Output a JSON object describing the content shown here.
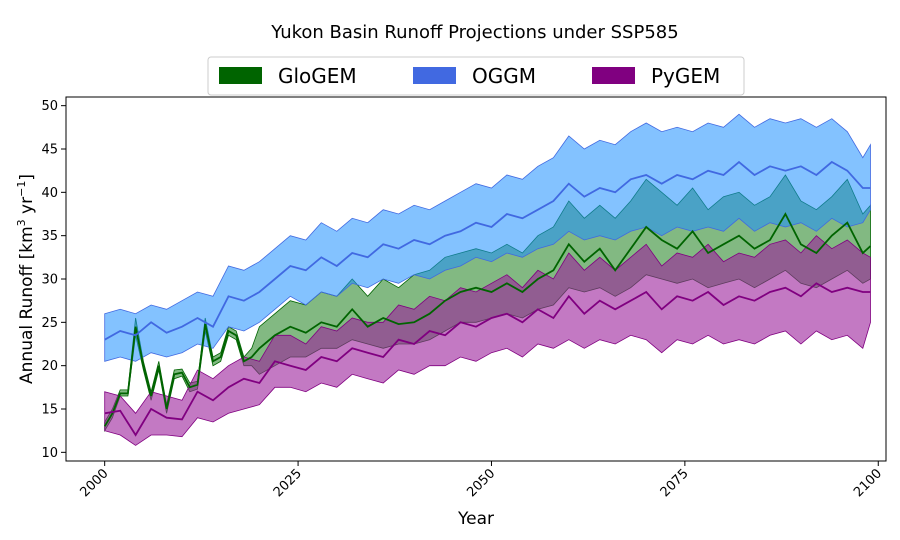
{
  "chart_data": {
    "type": "area",
    "title": "Yukon Basin Runoff Projections under SSP585",
    "xlabel": "Year",
    "ylabel_main": "Annual Runoff [km",
    "ylabel_sup1": "3",
    "ylabel_mid": " yr",
    "ylabel_sup2": "−1",
    "ylabel_end": "]",
    "xlim": [
      1995,
      2101
    ],
    "ylim": [
      9,
      51
    ],
    "x_ticks": [
      2000,
      2025,
      2050,
      2075,
      2100
    ],
    "y_ticks": [
      10,
      15,
      20,
      25,
      30,
      35,
      40,
      45,
      50
    ],
    "legend_position": "top-center",
    "grid": false,
    "series": [
      {
        "name": "GloGEM",
        "color": "#006400",
        "fill_color": "#2e8b2e",
        "fill_opacity": 0.6,
        "x": [
          2000,
          2001,
          2002,
          2003,
          2004,
          2005,
          2006,
          2007,
          2008,
          2009,
          2010,
          2011,
          2012,
          2013,
          2014,
          2015,
          2016,
          2017,
          2018,
          2019,
          2020,
          2022,
          2024,
          2026,
          2028,
          2030,
          2032,
          2034,
          2036,
          2038,
          2040,
          2042,
          2044,
          2046,
          2048,
          2050,
          2052,
          2054,
          2056,
          2058,
          2060,
          2062,
          2064,
          2066,
          2068,
          2070,
          2072,
          2074,
          2076,
          2078,
          2080,
          2082,
          2084,
          2086,
          2088,
          2090,
          2092,
          2094,
          2096,
          2098,
          2099
        ],
        "median": [
          13.0,
          14.5,
          16.8,
          16.8,
          24.5,
          20.0,
          16.5,
          20.0,
          15.0,
          19.0,
          19.2,
          17.5,
          17.8,
          24.8,
          20.5,
          21.0,
          24.0,
          23.5,
          20.5,
          21.0,
          22.0,
          23.5,
          24.5,
          23.8,
          25.0,
          24.5,
          26.5,
          24.5,
          25.5,
          24.8,
          25.0,
          26.0,
          27.5,
          28.5,
          29.0,
          28.5,
          29.5,
          28.5,
          30.0,
          31.0,
          34.0,
          32.0,
          33.5,
          31.0,
          33.5,
          36.0,
          34.5,
          33.5,
          35.5,
          33.0,
          34.0,
          35.0,
          33.5,
          34.5,
          37.5,
          34.0,
          33.0,
          35.0,
          36.5,
          33.0,
          33.8
        ],
        "low": [
          12.5,
          14.0,
          16.5,
          16.5,
          23.5,
          19.5,
          16.0,
          19.5,
          14.5,
          18.5,
          18.8,
          17.0,
          17.3,
          24.0,
          20.0,
          20.5,
          23.5,
          23.0,
          20.0,
          20.0,
          19.0,
          20.0,
          21.0,
          21.0,
          22.0,
          22.0,
          23.0,
          22.5,
          22.0,
          22.5,
          22.5,
          23.0,
          24.0,
          25.0,
          25.0,
          25.5,
          26.0,
          25.5,
          26.5,
          27.0,
          29.0,
          28.5,
          29.0,
          28.0,
          29.0,
          30.5,
          30.0,
          29.5,
          30.0,
          29.0,
          29.5,
          30.0,
          29.0,
          30.0,
          31.0,
          29.5,
          29.0,
          30.0,
          31.0,
          29.5,
          30.0
        ],
        "high": [
          13.5,
          15.0,
          17.2,
          17.2,
          25.5,
          20.5,
          17.0,
          20.5,
          15.5,
          19.5,
          19.6,
          18.0,
          18.2,
          25.5,
          21.0,
          21.5,
          24.5,
          24.0,
          21.0,
          22.0,
          24.5,
          26.0,
          27.5,
          27.0,
          28.5,
          28.0,
          30.0,
          28.0,
          30.0,
          29.0,
          30.5,
          31.0,
          32.5,
          33.0,
          33.5,
          33.0,
          34.0,
          33.0,
          35.0,
          36.0,
          39.0,
          37.0,
          38.5,
          37.0,
          39.0,
          41.5,
          40.0,
          38.5,
          40.5,
          38.0,
          39.5,
          40.0,
          38.5,
          39.5,
          42.0,
          39.0,
          38.0,
          39.5,
          41.5,
          37.5,
          38.5
        ]
      },
      {
        "name": "OGGM",
        "color": "#4169e1",
        "fill_color": "#1e90ff",
        "fill_opacity": 0.55,
        "x": [
          2000,
          2002,
          2004,
          2006,
          2008,
          2010,
          2012,
          2014,
          2016,
          2018,
          2020,
          2022,
          2024,
          2026,
          2028,
          2030,
          2032,
          2034,
          2036,
          2038,
          2040,
          2042,
          2044,
          2046,
          2048,
          2050,
          2052,
          2054,
          2056,
          2058,
          2060,
          2062,
          2064,
          2066,
          2068,
          2070,
          2072,
          2074,
          2076,
          2078,
          2080,
          2082,
          2084,
          2086,
          2088,
          2090,
          2092,
          2094,
          2096,
          2098,
          2099
        ],
        "median": [
          23.0,
          24.0,
          23.5,
          25.0,
          23.8,
          24.5,
          25.5,
          24.5,
          28.0,
          27.5,
          28.5,
          30.0,
          31.5,
          31.0,
          32.5,
          31.5,
          33.0,
          32.5,
          34.0,
          33.5,
          34.5,
          34.0,
          35.0,
          35.5,
          36.5,
          36.0,
          37.5,
          37.0,
          38.0,
          39.0,
          41.0,
          39.5,
          40.5,
          40.0,
          41.5,
          42.0,
          41.0,
          42.0,
          41.5,
          42.5,
          42.0,
          43.5,
          42.0,
          43.0,
          42.5,
          43.0,
          42.0,
          43.5,
          42.5,
          40.5,
          40.5
        ],
        "low": [
          20.5,
          21.0,
          20.5,
          21.5,
          21.0,
          21.5,
          22.5,
          22.0,
          24.5,
          24.0,
          25.0,
          26.5,
          28.0,
          27.0,
          28.5,
          28.0,
          29.5,
          29.0,
          30.0,
          29.5,
          30.5,
          30.0,
          31.0,
          31.5,
          32.5,
          32.0,
          33.0,
          32.5,
          33.5,
          34.0,
          35.5,
          34.5,
          35.0,
          34.5,
          35.5,
          36.0,
          35.0,
          36.0,
          35.5,
          36.0,
          35.5,
          37.0,
          35.5,
          36.5,
          36.0,
          36.5,
          35.5,
          37.0,
          36.0,
          36.5,
          38.0
        ],
        "high": [
          26.0,
          26.5,
          26.0,
          27.0,
          26.5,
          27.5,
          28.5,
          28.0,
          31.5,
          31.0,
          32.0,
          33.5,
          35.0,
          34.5,
          36.5,
          35.5,
          37.0,
          36.5,
          38.0,
          37.5,
          38.5,
          38.0,
          39.0,
          40.0,
          41.0,
          40.5,
          42.0,
          41.5,
          43.0,
          44.0,
          46.5,
          45.0,
          46.0,
          45.5,
          47.0,
          48.0,
          47.0,
          47.5,
          47.0,
          48.0,
          47.5,
          49.0,
          47.5,
          48.5,
          48.0,
          48.5,
          47.5,
          48.5,
          47.0,
          44.0,
          45.5
        ]
      },
      {
        "name": "PyGEM",
        "color": "#800080",
        "fill_color": "#9b1f9b",
        "fill_opacity": 0.6,
        "x": [
          2000,
          2002,
          2004,
          2006,
          2008,
          2010,
          2012,
          2014,
          2016,
          2018,
          2020,
          2022,
          2024,
          2026,
          2028,
          2030,
          2032,
          2034,
          2036,
          2038,
          2040,
          2042,
          2044,
          2046,
          2048,
          2050,
          2052,
          2054,
          2056,
          2058,
          2060,
          2062,
          2064,
          2066,
          2068,
          2070,
          2072,
          2074,
          2076,
          2078,
          2080,
          2082,
          2084,
          2086,
          2088,
          2090,
          2092,
          2094,
          2096,
          2098,
          2099
        ],
        "median": [
          14.5,
          14.8,
          12.0,
          15.0,
          14.0,
          13.8,
          17.0,
          16.0,
          17.5,
          18.5,
          18.0,
          20.5,
          20.0,
          19.5,
          21.0,
          20.5,
          22.0,
          21.5,
          21.0,
          23.0,
          22.5,
          24.0,
          23.5,
          25.0,
          24.5,
          25.5,
          26.0,
          25.0,
          26.5,
          25.5,
          28.0,
          26.0,
          27.5,
          26.5,
          27.5,
          28.5,
          26.5,
          28.0,
          27.5,
          28.5,
          27.0,
          28.0,
          27.5,
          28.5,
          29.0,
          28.0,
          29.5,
          28.5,
          29.0,
          28.5,
          28.5
        ],
        "low": [
          12.5,
          12.0,
          10.8,
          12.0,
          12.0,
          11.8,
          14.0,
          13.5,
          14.5,
          15.0,
          15.5,
          17.5,
          17.5,
          17.0,
          18.0,
          17.5,
          19.0,
          18.5,
          18.0,
          19.5,
          19.0,
          20.0,
          20.0,
          21.0,
          20.5,
          21.5,
          22.0,
          21.0,
          22.5,
          22.0,
          23.0,
          22.0,
          23.0,
          22.5,
          23.5,
          23.0,
          21.5,
          23.0,
          22.5,
          23.5,
          22.5,
          23.0,
          22.5,
          23.5,
          24.0,
          22.5,
          24.0,
          23.0,
          23.5,
          22.0,
          25.0
        ],
        "high": [
          17.0,
          16.5,
          14.5,
          17.0,
          16.5,
          16.0,
          19.5,
          18.5,
          20.0,
          21.0,
          20.5,
          23.5,
          23.5,
          22.5,
          24.5,
          24.0,
          25.5,
          25.0,
          25.0,
          27.0,
          26.5,
          28.0,
          27.5,
          29.0,
          28.5,
          29.5,
          30.5,
          29.0,
          31.0,
          30.0,
          33.0,
          31.0,
          32.5,
          31.0,
          32.5,
          34.0,
          31.5,
          33.0,
          32.5,
          34.0,
          32.0,
          33.0,
          32.5,
          34.0,
          34.5,
          33.0,
          35.0,
          33.5,
          34.5,
          33.0,
          32.5
        ]
      }
    ]
  }
}
